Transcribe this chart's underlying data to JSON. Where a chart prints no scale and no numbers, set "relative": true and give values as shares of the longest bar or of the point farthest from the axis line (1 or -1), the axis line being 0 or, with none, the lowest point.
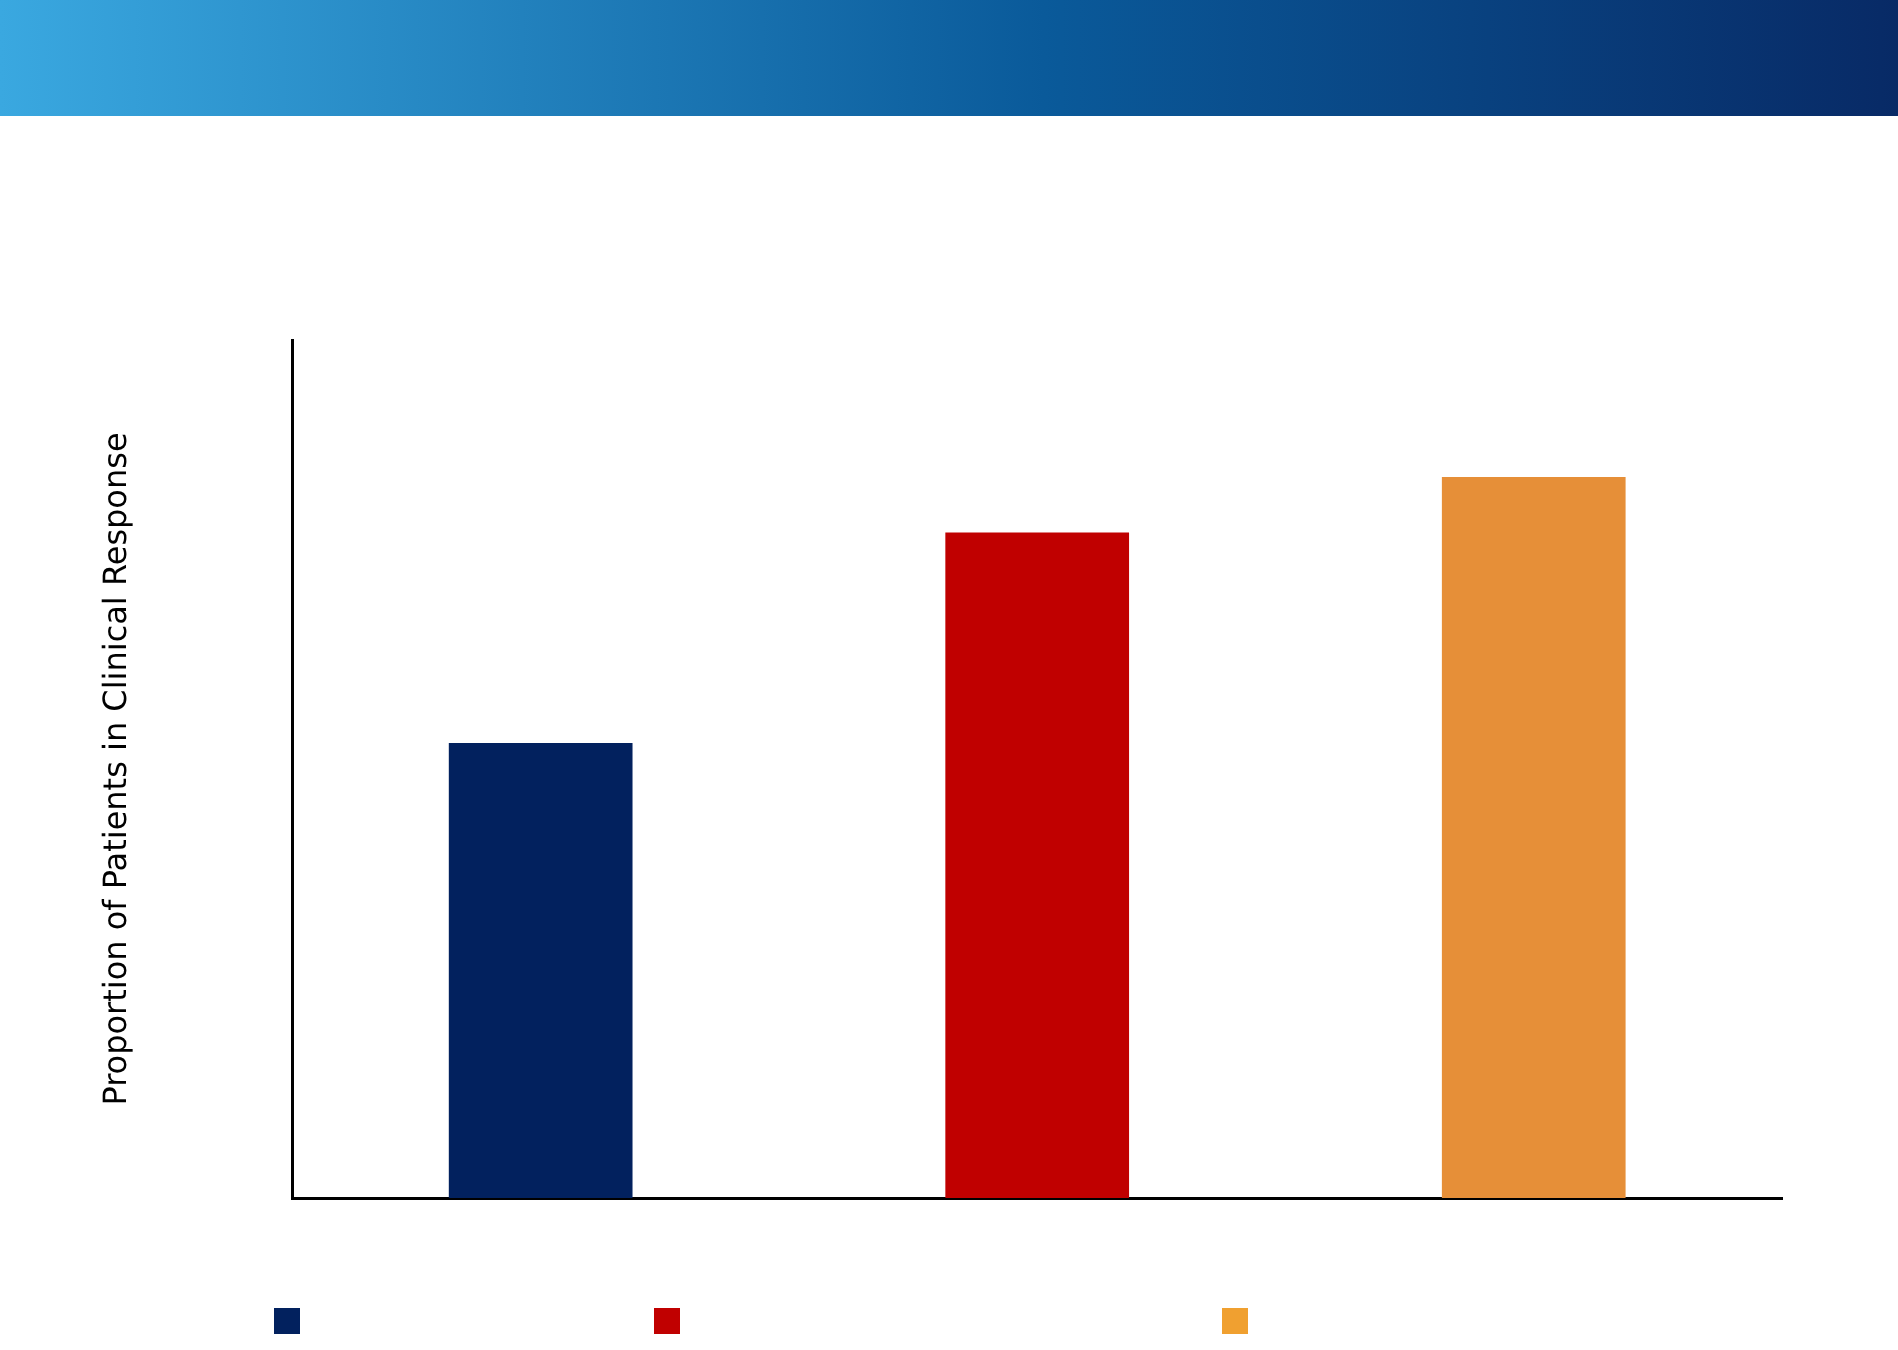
{
  "chart_data": {
    "type": "bar",
    "relative": true,
    "ylabel": "Proportion of Patients in Clinical Response",
    "categories": [
      null,
      null,
      null
    ],
    "series": [
      {
        "colors": [
          "#02215e",
          "#c00000",
          "#e68f38"
        ],
        "values": [
          0.631,
          0.923,
          1
        ]
      }
    ],
    "grid": false
  }
}
